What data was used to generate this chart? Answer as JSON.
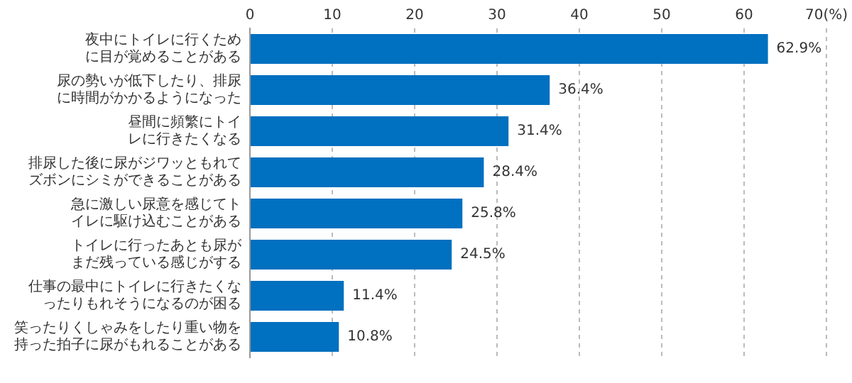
{
  "chart_data": {
    "type": "bar",
    "orientation": "horizontal",
    "categories": [
      "夜中にトイレに行くために目が覚めることがある",
      "尿の勢いが低下したり、排尿に時間がかかるようになった",
      "昼間に頻繁にトイレに行きたくなる",
      "排尿した後に尿がジワッともれてズボンにシミができることがある",
      "急に激しい尿意を感じてトイレに駆け込むことがある",
      "トイレに行ったあとも尿がまだ残っている感じがする",
      "仕事の最中にトイレに行きたくなったりもれそうになるのが困る",
      "笑ったりくしゃみをしたり重い物を持った拍子に尿がもれることがある"
    ],
    "values": [
      62.9,
      36.4,
      31.4,
      28.4,
      25.8,
      24.5,
      11.4,
      10.8
    ],
    "value_labels": [
      "62.9%",
      "36.4%",
      "31.4%",
      "28.4%",
      "25.8%",
      "24.5%",
      "11.4%",
      "10.8%"
    ],
    "color": "#0070c0",
    "xlim": [
      0,
      70
    ],
    "xticks": [
      0,
      10,
      20,
      30,
      40,
      50,
      60,
      {
        "value": 70,
        "label": "70(%)"
      }
    ],
    "grid": "x"
  }
}
